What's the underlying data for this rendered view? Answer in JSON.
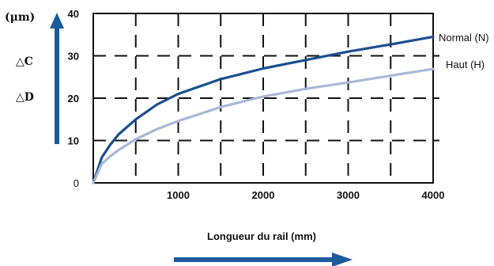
{
  "chart_data": {
    "type": "line",
    "x_ticks": [
      0,
      1000,
      2000,
      3000,
      4000
    ],
    "y_ticks": [
      0,
      10,
      20,
      30,
      40
    ],
    "xlim": [
      0,
      4000
    ],
    "ylim": [
      0,
      40
    ],
    "y_unit": "(μm)",
    "y_side_labels": [
      "△C",
      "△D"
    ],
    "xlabel": "Longueur du rail (mm)",
    "grid": "dashed",
    "series": [
      {
        "name": "Normal (N)",
        "color": "#1b4f8f",
        "x": [
          0,
          100,
          200,
          300,
          500,
          750,
          1000,
          1500,
          2000,
          2500,
          3000,
          3500,
          4000
        ],
        "y": [
          0,
          6,
          9,
          11.5,
          15,
          18.5,
          21,
          24.5,
          27,
          29,
          31,
          32.7,
          34.5
        ]
      },
      {
        "name": "Haut (H)",
        "color": "#a9b8d8",
        "x": [
          0,
          100,
          200,
          300,
          500,
          750,
          1000,
          1500,
          2000,
          2500,
          3000,
          3500,
          4000
        ],
        "y": [
          0,
          4.5,
          6.3,
          7.8,
          10.3,
          12.7,
          14.6,
          17.9,
          20.4,
          22.2,
          23.7,
          25.3,
          26.9
        ]
      }
    ]
  }
}
